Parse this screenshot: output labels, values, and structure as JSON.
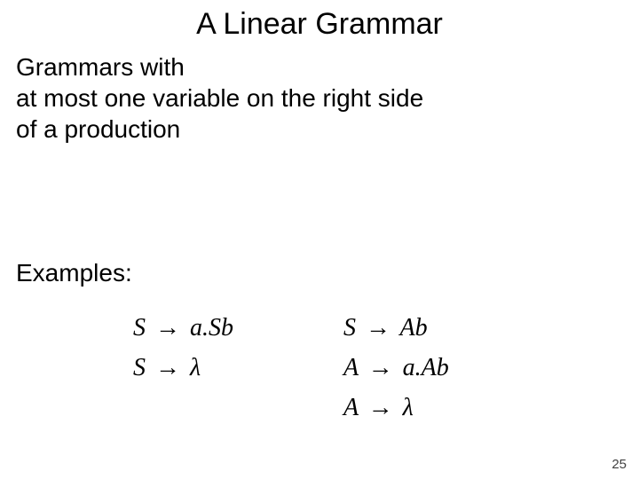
{
  "title": "A Linear Grammar",
  "body_lines": [
    "Grammars with",
    "at most one variable on the right side",
    "of a production"
  ],
  "examples_label": "Examples:",
  "arrow_glyph": "→",
  "lambda_glyph": "λ",
  "grammar_col1": [
    {
      "lhs": "S",
      "rhs": "a.Sb"
    },
    {
      "lhs": "S",
      "rhs_lambda": true
    }
  ],
  "grammar_col2": [
    {
      "lhs": "S",
      "rhs": "Ab"
    },
    {
      "lhs": "A",
      "rhs": "a.Ab"
    },
    {
      "lhs": "A",
      "rhs_lambda": true
    }
  ],
  "page_number": "25",
  "colors": {
    "background": "#ffffff",
    "text": "#000000",
    "pagenum": "#404040"
  },
  "fonts": {
    "body_family": "Comic Sans MS",
    "formula_family": "Times New Roman",
    "title_size_pt": 34,
    "body_size_pt": 28,
    "formula_size_pt": 28,
    "pagenum_size_pt": 15
  }
}
